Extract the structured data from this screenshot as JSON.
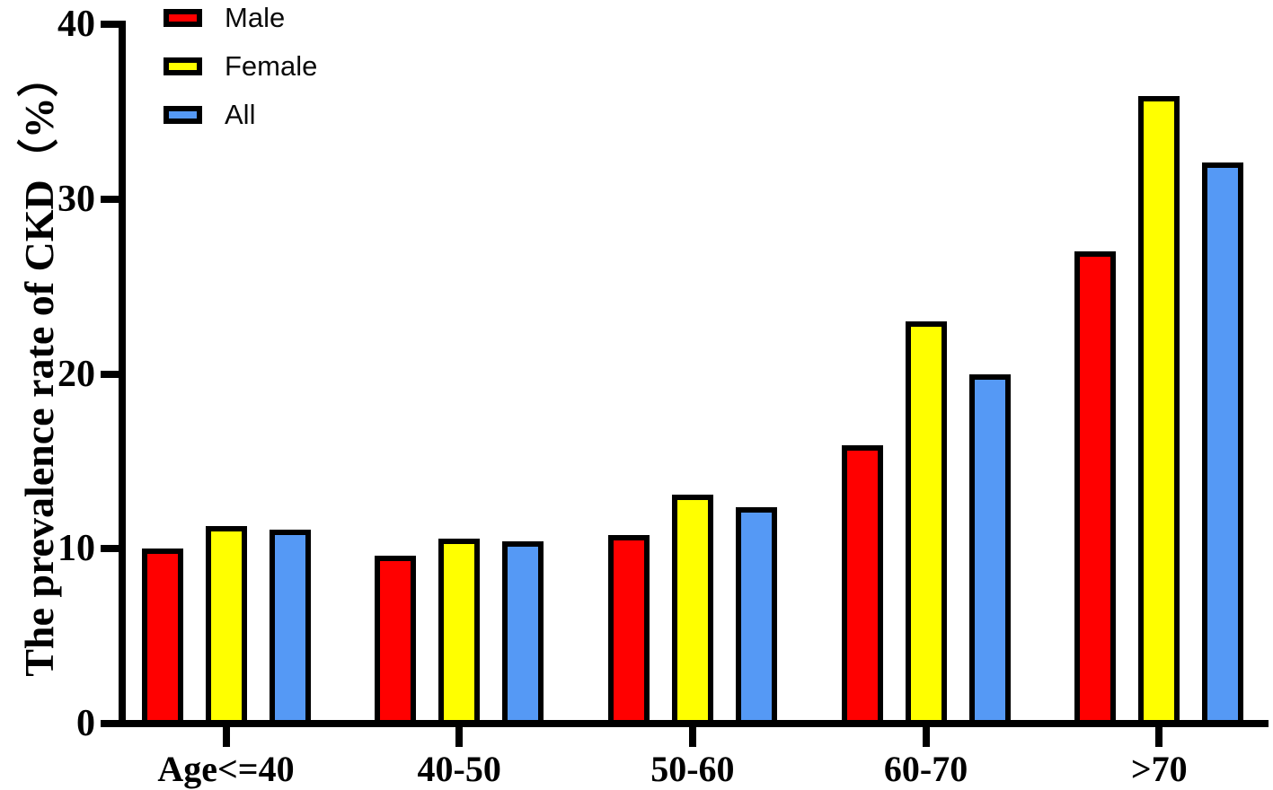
{
  "chart_data": {
    "type": "bar",
    "title": "",
    "xlabel": "",
    "ylabel": "The prevalence rate of CKD（%）",
    "categories": [
      "Age<=40",
      "40-50",
      "50-60",
      "60-70",
      ">70"
    ],
    "series": [
      {
        "name": "Male",
        "color": "#FF0000",
        "values": [
          10.0,
          9.6,
          10.8,
          15.9,
          27.0
        ]
      },
      {
        "name": "Female",
        "color": "#FFFF00",
        "values": [
          11.3,
          10.6,
          13.1,
          23.0,
          35.9
        ]
      },
      {
        "name": "All",
        "color": "#5599F5",
        "values": [
          11.1,
          10.4,
          12.4,
          20.0,
          32.1
        ]
      }
    ],
    "ylim": [
      0,
      40
    ],
    "yticks": [
      0,
      10,
      20,
      30,
      40
    ],
    "grid": false,
    "legend_position": "top-left",
    "axis_color": "#000000",
    "background_color": "#FFFFFF"
  }
}
